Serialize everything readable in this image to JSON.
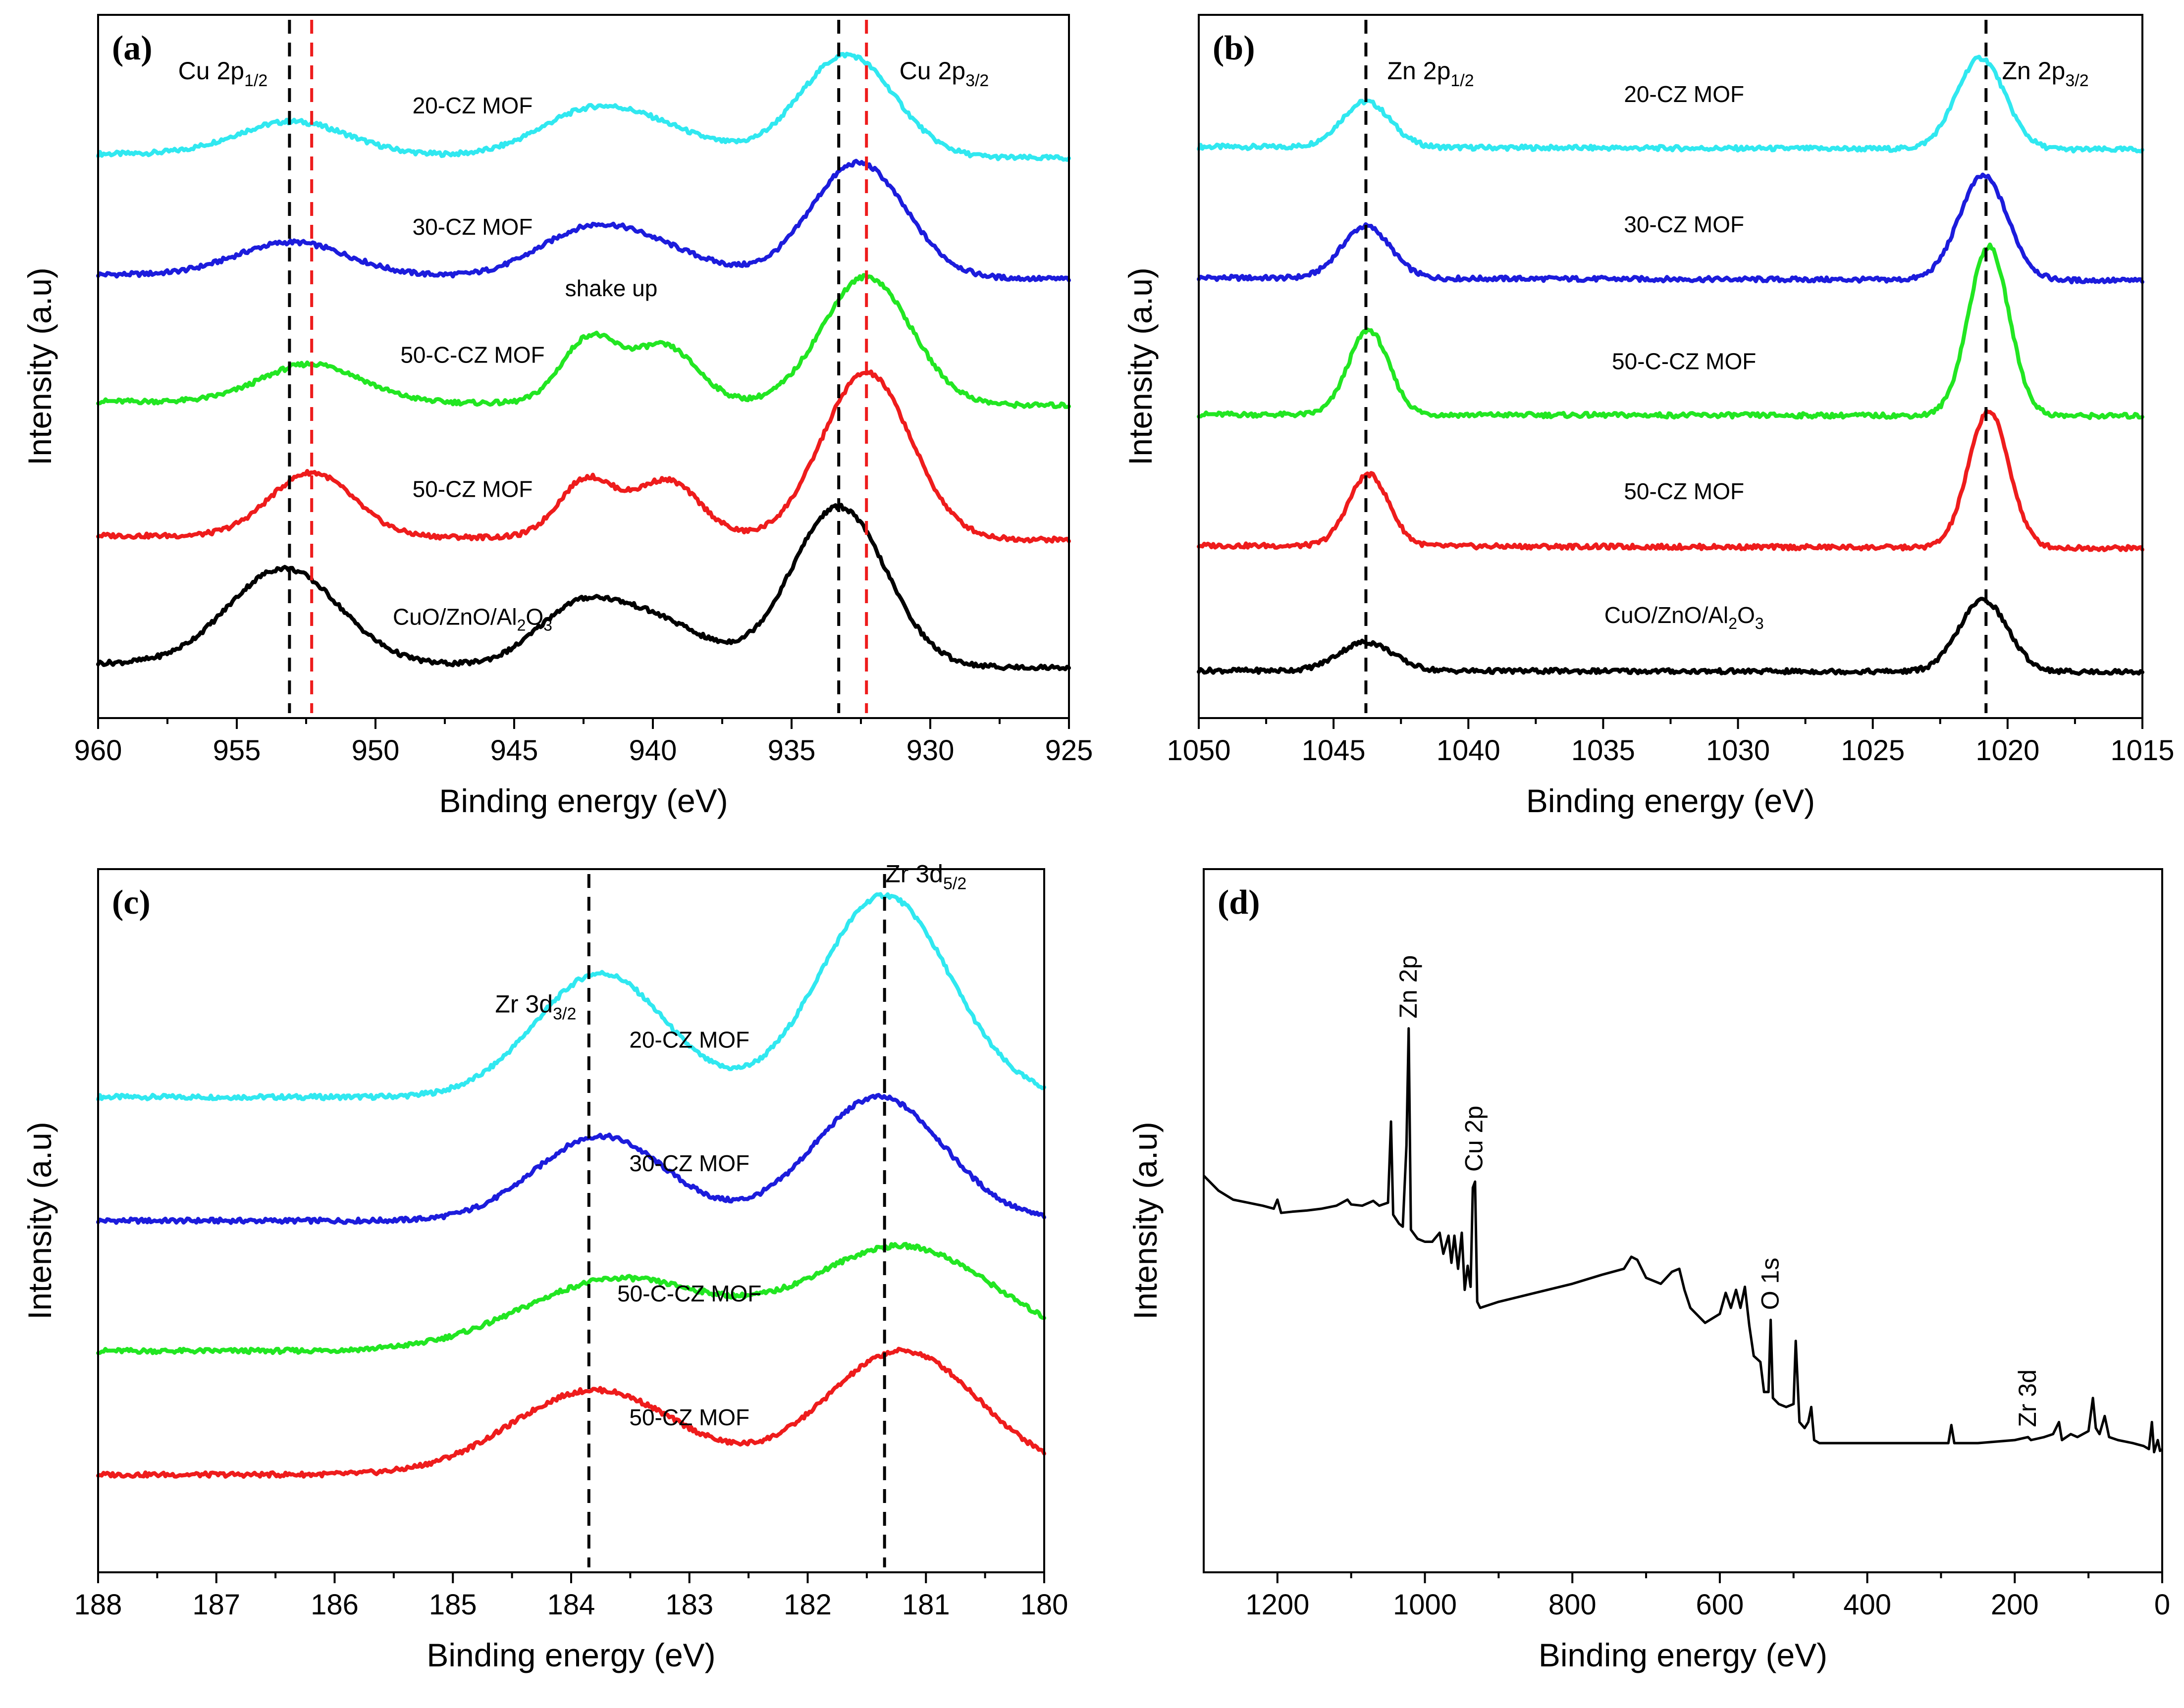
{
  "colors": {
    "20-CZ MOF": "#30e8f0",
    "30-CZ MOF": "#1c1cdc",
    "50-C-CZ MOF": "#22e622",
    "50-CZ MOF": "#ee1c1c",
    "CuO/ZnO/Al2O3": "#000000",
    "survey": "#000000",
    "black_dash": "#000000",
    "red_dash": "#ee1c1c"
  },
  "chart_data": [
    {
      "panel": "(a)",
      "type": "line",
      "xlabel": "Binding energy (eV)",
      "ylabel": "Intensity (a.u)",
      "xlim": [
        960,
        925
      ],
      "xticks": [
        960,
        955,
        950,
        945,
        940,
        935,
        930,
        925
      ],
      "peak_labels": [
        {
          "text": "Cu 2p",
          "sub": "1/2",
          "energy": 955.5
        },
        {
          "text": "Cu 2p",
          "sub": "3/2",
          "energy": 929.5
        }
      ],
      "annotations": [
        {
          "text": "shake up",
          "energy": 941.5
        }
      ],
      "ref_lines": [
        {
          "energy": 953.1,
          "style": "black"
        },
        {
          "energy": 952.3,
          "style": "red"
        },
        {
          "energy": 933.3,
          "style": "black"
        },
        {
          "energy": 932.3,
          "style": "red"
        }
      ],
      "series": [
        {
          "name": "20-CZ MOF",
          "label_text": "20-CZ MOF",
          "label_energy": 946.5,
          "offset": 4.0,
          "scale": 0.5,
          "slope": 0.06,
          "peaks": [
            {
              "c": 953.0,
              "a": 0.26,
              "w": 2.0
            },
            {
              "c": 942.5,
              "a": 0.28,
              "w": 1.8
            },
            {
              "c": 940.0,
              "a": 0.2,
              "w": 2.0
            },
            {
              "c": 933.0,
              "a": 0.8,
              "w": 1.7
            }
          ]
        },
        {
          "name": "30-CZ MOF",
          "label_text": "30-CZ MOF",
          "label_energy": 946.5,
          "offset": 3.05,
          "scale": 0.55,
          "slope": 0.07,
          "peaks": [
            {
              "c": 953.0,
              "a": 0.26,
              "w": 2.0
            },
            {
              "c": 942.5,
              "a": 0.3,
              "w": 1.8
            },
            {
              "c": 940.0,
              "a": 0.2,
              "w": 2.0
            },
            {
              "c": 932.6,
              "a": 0.9,
              "w": 1.7
            }
          ]
        },
        {
          "name": "50-C-CZ MOF",
          "label_text": "50-C-CZ MOF",
          "label_energy": 946.5,
          "offset": 2.05,
          "scale": 0.62,
          "slope": 0.09,
          "peaks": [
            {
              "c": 952.3,
              "a": 0.3,
              "w": 1.8
            },
            {
              "c": 942.3,
              "a": 0.5,
              "w": 1.0
            },
            {
              "c": 939.6,
              "a": 0.45,
              "w": 1.2
            },
            {
              "c": 932.3,
              "a": 1.0,
              "w": 1.6
            }
          ]
        },
        {
          "name": "50-CZ MOF",
          "label_text": "50-CZ MOF",
          "label_energy": 946.5,
          "offset": 1.0,
          "scale": 0.62,
          "slope": 0.09,
          "peaks": [
            {
              "c": 952.3,
              "a": 0.5,
              "w": 1.5
            },
            {
              "c": 942.4,
              "a": 0.45,
              "w": 1.0
            },
            {
              "c": 939.5,
              "a": 0.45,
              "w": 1.2
            },
            {
              "c": 932.3,
              "a": 1.3,
              "w": 1.6
            }
          ]
        },
        {
          "name": "CuO/ZnO/Al2O3",
          "label_text": "CuO/ZnO/Al",
          "label_sub": "2",
          "label_tail": "O",
          "label_sub2": "3",
          "label_energy": 946.5,
          "offset": 0.0,
          "scale": 0.62,
          "slope": 0.09,
          "peaks": [
            {
              "c": 953.3,
              "a": 0.75,
              "w": 2.0
            },
            {
              "c": 942.8,
              "a": 0.4,
              "w": 1.5
            },
            {
              "c": 940.0,
              "a": 0.35,
              "w": 1.8
            },
            {
              "c": 933.3,
              "a": 1.25,
              "w": 1.7
            }
          ]
        }
      ]
    },
    {
      "panel": "(b)",
      "type": "line",
      "xlabel": "Binding energy (eV)",
      "ylabel": "Intensity (a.u)",
      "xlim": [
        1050,
        1015
      ],
      "xticks": [
        1050,
        1045,
        1040,
        1035,
        1030,
        1025,
        1020,
        1015
      ],
      "peak_labels": [
        {
          "text": "Zn 2p",
          "sub": "1/2",
          "energy": 1041.4
        },
        {
          "text": "Zn 2p",
          "sub": "3/2",
          "energy": 1018.6
        }
      ],
      "ref_lines": [
        {
          "energy": 1043.8,
          "style": "black"
        },
        {
          "energy": 1020.8,
          "style": "black"
        }
      ],
      "series": [
        {
          "name": "20-CZ MOF",
          "label_text": "20-CZ MOF",
          "label_energy": 1032.0,
          "offset": 4.0,
          "scale": 0.3,
          "slope": 0.03,
          "peaks": [
            {
              "c": 1043.8,
              "a": 0.35,
              "w": 0.9
            },
            {
              "c": 1021.0,
              "a": 0.7,
              "w": 0.9
            }
          ]
        },
        {
          "name": "30-CZ MOF",
          "label_text": "30-CZ MOF",
          "label_energy": 1032.0,
          "offset": 3.0,
          "scale": 0.25,
          "slope": 0.02,
          "peaks": [
            {
              "c": 1043.8,
              "a": 0.4,
              "w": 0.9
            },
            {
              "c": 1020.9,
              "a": 0.8,
              "w": 0.9
            }
          ]
        },
        {
          "name": "50-C-CZ MOF",
          "label_text": "50-C-CZ MOF",
          "label_energy": 1032.0,
          "offset": 1.95,
          "scale": 0.25,
          "slope": 0.04,
          "peaks": [
            {
              "c": 1043.7,
              "a": 0.65,
              "w": 0.75
            },
            {
              "c": 1020.7,
              "a": 1.3,
              "w": 0.75
            }
          ]
        },
        {
          "name": "50-CZ MOF",
          "label_text": "50-CZ MOF",
          "label_energy": 1032.0,
          "offset": 0.95,
          "scale": 0.2,
          "slope": 0.01,
          "peaks": [
            {
              "c": 1043.7,
              "a": 0.55,
              "w": 0.75
            },
            {
              "c": 1020.7,
              "a": 1.05,
              "w": 0.75
            }
          ]
        },
        {
          "name": "CuO/ZnO/Al2O3",
          "label_text": "CuO/ZnO/Al",
          "label_sub": "2",
          "label_tail": "O",
          "label_sub2": "3",
          "label_energy": 1032.0,
          "offset": 0.0,
          "scale": 0.12,
          "slope": 0.01,
          "peaks": [
            {
              "c": 1043.8,
              "a": 0.22,
              "w": 1.0
            },
            {
              "c": 1020.9,
              "a": 0.55,
              "w": 0.9
            }
          ]
        }
      ]
    },
    {
      "panel": "(c)",
      "type": "line",
      "xlabel": "Binding energy (eV)",
      "ylabel": "Intensity (a.u)",
      "xlim": [
        188,
        180
      ],
      "xticks": [
        188,
        187,
        186,
        185,
        184,
        183,
        182,
        181,
        180
      ],
      "peak_labels": [
        {
          "text": "Zr 3d",
          "sub": "3/2",
          "energy": 184.3
        },
        {
          "text": "Zr 3d",
          "sub": "5/2",
          "energy": 181.0
        }
      ],
      "ref_lines": [
        {
          "energy": 183.85,
          "style": "black"
        },
        {
          "energy": 181.35,
          "style": "black"
        }
      ],
      "series": [
        {
          "name": "20-CZ MOF",
          "label_text": "20-CZ MOF",
          "label_energy": 183.0,
          "offset": 2.9,
          "scale": 0.0,
          "slope": 0.0,
          "peaks": [
            {
              "c": 183.75,
              "a": 0.95,
              "w": 0.55
            },
            {
              "c": 181.35,
              "a": 1.55,
              "w": 0.55
            }
          ]
        },
        {
          "name": "30-CZ MOF",
          "label_text": "30-CZ MOF",
          "label_energy": 183.0,
          "offset": 1.95,
          "scale": 0.0,
          "slope": 0.0,
          "peaks": [
            {
              "c": 183.75,
              "a": 0.65,
              "w": 0.55
            },
            {
              "c": 181.4,
              "a": 0.95,
              "w": 0.55
            }
          ]
        },
        {
          "name": "50-C-CZ MOF",
          "label_text": "50-C-CZ MOF",
          "label_energy": 183.0,
          "offset": 0.95,
          "scale": 0.0,
          "slope": 0.0,
          "peaks": [
            {
              "c": 183.6,
              "a": 0.55,
              "w": 0.8
            },
            {
              "c": 181.2,
              "a": 0.8,
              "w": 0.8
            }
          ]
        },
        {
          "name": "50-CZ MOF",
          "label_text": "50-CZ MOF",
          "label_energy": 183.0,
          "offset": 0.0,
          "scale": 0.0,
          "slope": 0.0,
          "peaks": [
            {
              "c": 183.8,
              "a": 0.65,
              "w": 0.7
            },
            {
              "c": 181.2,
              "a": 0.95,
              "w": 0.65
            }
          ]
        }
      ]
    },
    {
      "panel": "(d)",
      "type": "line",
      "xlabel": "Binding energy (eV)",
      "ylabel": "Intensity (a.u)",
      "xlim": [
        1300,
        0
      ],
      "ylim": [
        0,
        10
      ],
      "xticks": [
        1200,
        1000,
        800,
        600,
        400,
        200,
        0
      ],
      "peak_labels": [
        {
          "text": "Zn 2p",
          "energy": 1022,
          "rotated": true
        },
        {
          "text": "Cu 2p",
          "energy": 933,
          "rotated": true
        },
        {
          "text": "O 1s",
          "energy": 531,
          "rotated": true
        },
        {
          "text": "Zr 3d",
          "energy": 182,
          "rotated": true
        }
      ],
      "series": [
        {
          "name": "survey",
          "points": [
            [
              1300,
              5.4
            ],
            [
              1280,
              5.15
            ],
            [
              1260,
              5.0
            ],
            [
              1240,
              4.95
            ],
            [
              1220,
              4.9
            ],
            [
              1205,
              4.85
            ],
            [
              1200,
              5.0
            ],
            [
              1195,
              4.78
            ],
            [
              1180,
              4.8
            ],
            [
              1160,
              4.82
            ],
            [
              1140,
              4.85
            ],
            [
              1120,
              4.9
            ],
            [
              1105,
              5.0
            ],
            [
              1100,
              4.92
            ],
            [
              1085,
              4.9
            ],
            [
              1070,
              4.98
            ],
            [
              1062,
              4.9
            ],
            [
              1050,
              4.95
            ],
            [
              1046,
              6.3
            ],
            [
              1043,
              4.75
            ],
            [
              1035,
              4.6
            ],
            [
              1030,
              4.55
            ],
            [
              1025,
              5.9
            ],
            [
              1022,
              7.85
            ],
            [
              1019,
              4.5
            ],
            [
              1010,
              4.35
            ],
            [
              1000,
              4.3
            ],
            [
              990,
              4.3
            ],
            [
              980,
              4.45
            ],
            [
              975,
              4.1
            ],
            [
              968,
              4.4
            ],
            [
              964,
              3.95
            ],
            [
              960,
              4.4
            ],
            [
              955,
              3.85
            ],
            [
              950,
              4.45
            ],
            [
              946,
              3.5
            ],
            [
              942,
              3.9
            ],
            [
              938,
              3.55
            ],
            [
              935,
              5.2
            ],
            [
              932,
              5.3
            ],
            [
              929,
              3.3
            ],
            [
              925,
              3.2
            ],
            [
              900,
              3.3
            ],
            [
              850,
              3.45
            ],
            [
              800,
              3.6
            ],
            [
              760,
              3.75
            ],
            [
              730,
              3.85
            ],
            [
              720,
              4.05
            ],
            [
              712,
              4.0
            ],
            [
              700,
              3.7
            ],
            [
              680,
              3.6
            ],
            [
              665,
              3.8
            ],
            [
              655,
              3.85
            ],
            [
              648,
              3.5
            ],
            [
              640,
              3.2
            ],
            [
              620,
              2.95
            ],
            [
              600,
              3.1
            ],
            [
              592,
              3.45
            ],
            [
              585,
              3.2
            ],
            [
              578,
              3.5
            ],
            [
              572,
              3.2
            ],
            [
              566,
              3.55
            ],
            [
              560,
              2.9
            ],
            [
              554,
              2.4
            ],
            [
              545,
              2.3
            ],
            [
              540,
              1.8
            ],
            [
              534,
              1.8
            ],
            [
              531,
              3.0
            ],
            [
              528,
              1.7
            ],
            [
              520,
              1.6
            ],
            [
              510,
              1.55
            ],
            [
              500,
              1.6
            ],
            [
              497,
              2.65
            ],
            [
              492,
              1.3
            ],
            [
              485,
              1.2
            ],
            [
              480,
              1.3
            ],
            [
              476,
              1.55
            ],
            [
              472,
              1.0
            ],
            [
              465,
              0.95
            ],
            [
              400,
              0.95
            ],
            [
              350,
              0.95
            ],
            [
              290,
              0.95
            ],
            [
              286,
              1.25
            ],
            [
              282,
              0.95
            ],
            [
              250,
              0.95
            ],
            [
              200,
              1.0
            ],
            [
              182,
              1.05
            ],
            [
              178,
              1.0
            ],
            [
              160,
              1.05
            ],
            [
              148,
              1.1
            ],
            [
              140,
              1.3
            ],
            [
              136,
              1.0
            ],
            [
              124,
              1.1
            ],
            [
              115,
              1.05
            ],
            [
              100,
              1.15
            ],
            [
              94,
              1.7
            ],
            [
              90,
              1.2
            ],
            [
              85,
              1.1
            ],
            [
              78,
              1.4
            ],
            [
              72,
              1.05
            ],
            [
              60,
              1.0
            ],
            [
              40,
              0.95
            ],
            [
              25,
              0.9
            ],
            [
              18,
              0.85
            ],
            [
              14,
              1.3
            ],
            [
              11,
              0.8
            ],
            [
              6,
              1.0
            ],
            [
              3,
              0.82
            ],
            [
              0,
              0.85
            ]
          ]
        }
      ]
    }
  ]
}
